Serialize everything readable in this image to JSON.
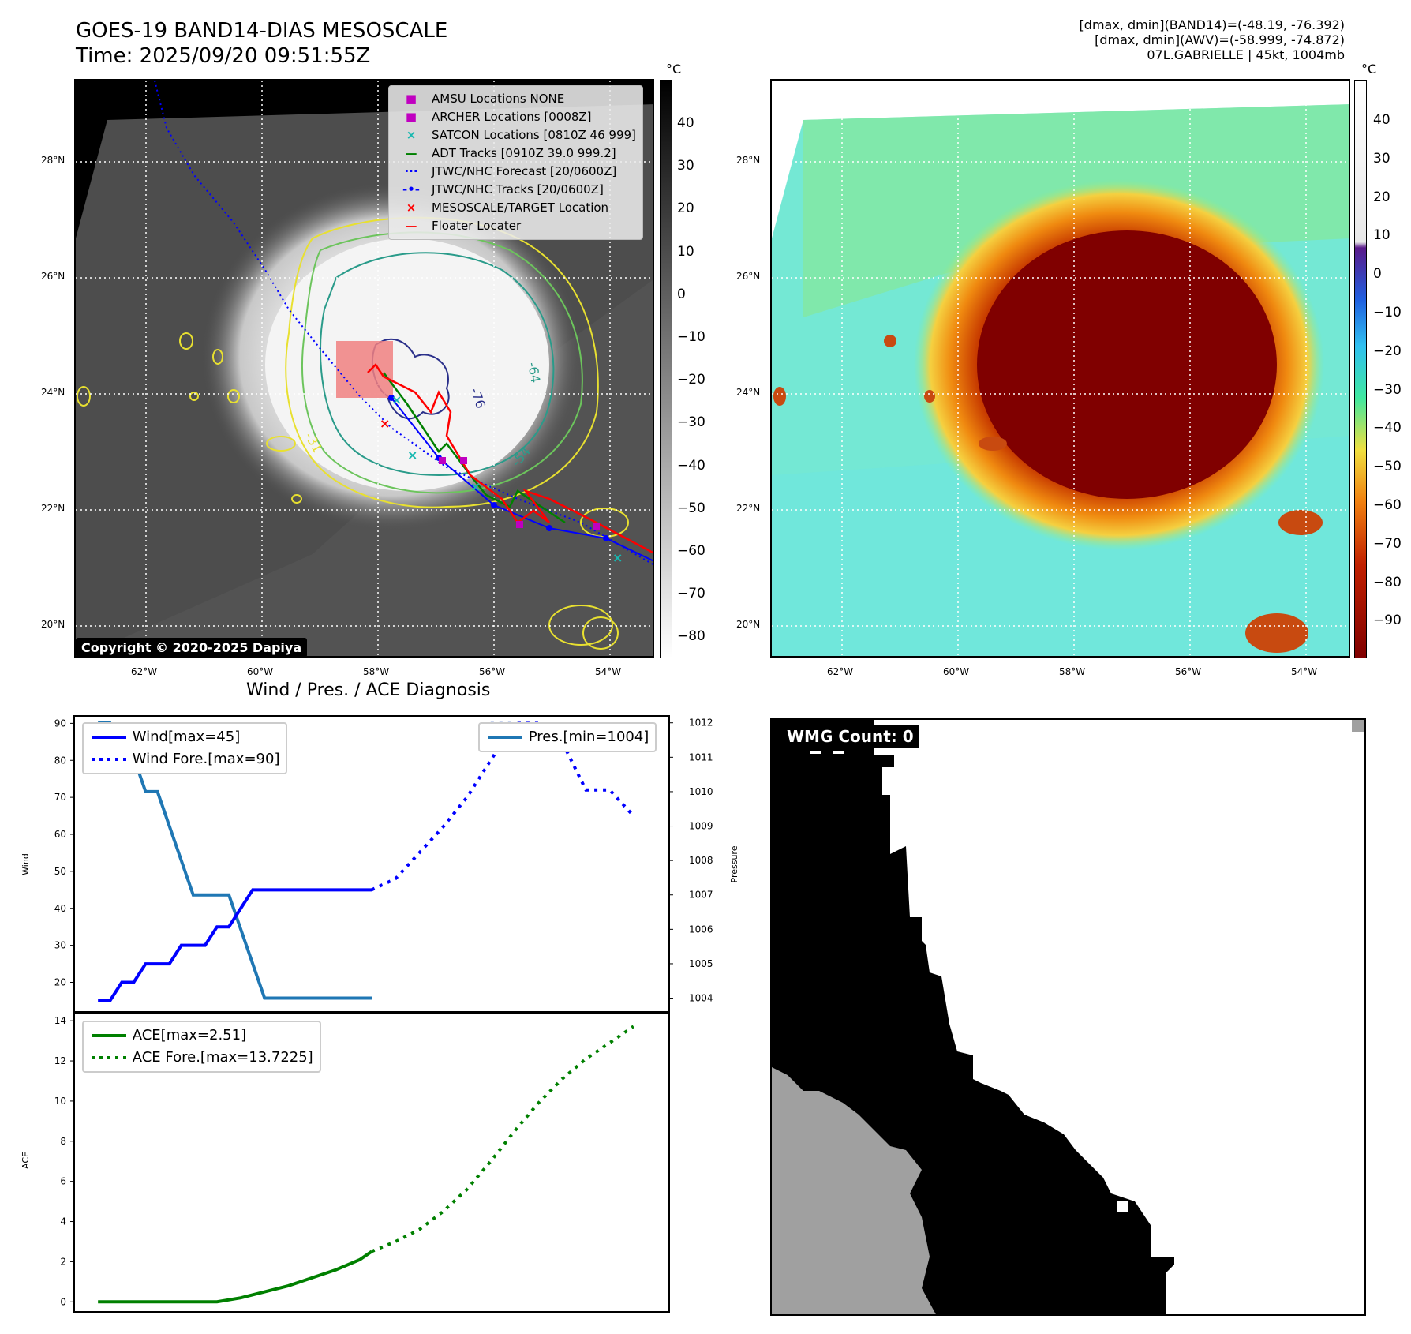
{
  "header": {
    "title_line1": "GOES-19 BAND14-DIAS MESOSCALE",
    "title_line2": "Time: 2025/09/20 09:51:55Z",
    "info_line1": "[dmax, dmin](BAND14)=(-48.19, -76.392)",
    "info_line2": "[dmax, dmin](AWV)=(-58.999, -74.872)",
    "info_line3": "07L.GABRIELLE | 45kt, 1004mb"
  },
  "map": {
    "lat_labels": [
      "28°N",
      "26°N",
      "24°N",
      "22°N",
      "20°N"
    ],
    "lon_labels": [
      "62°W",
      "60°W",
      "58°W",
      "56°W",
      "54°W"
    ],
    "contour_labels": [
      "-64",
      "-76",
      "-54",
      "-31"
    ],
    "copyright": "Copyright © 2020-2025 Dapiya",
    "legend": [
      {
        "symbol": "■",
        "color": "#c000c0",
        "label": "AMSU Locations NONE"
      },
      {
        "symbol": "■",
        "color": "#c000c0",
        "label": "ARCHER Locations [0008Z]"
      },
      {
        "symbol": "×",
        "color": "#17b8b0",
        "label": "SATCON Locations [0810Z 46 999]"
      },
      {
        "symbol": "—",
        "color": "#008000",
        "label": "ADT Tracks [0910Z 39.0 999.2]"
      },
      {
        "symbol": "···",
        "color": "#0000ff",
        "label": "JTWC/NHC Forecast [20/0600Z]"
      },
      {
        "symbol": "-•-",
        "color": "#0000ff",
        "label": "JTWC/NHC Tracks [20/0600Z]"
      },
      {
        "symbol": "×",
        "color": "#ff0000",
        "label": "MESOSCALE/TARGET Location"
      },
      {
        "symbol": "—",
        "color": "#ff0000",
        "label": "Floater Locater"
      }
    ]
  },
  "colorbar_left": {
    "unit": "°C",
    "ticks": [
      "40",
      "30",
      "20",
      "10",
      "0",
      "−10",
      "−20",
      "−30",
      "−40",
      "−50",
      "−60",
      "−70",
      "−80"
    ]
  },
  "colorbar_right": {
    "unit": "°C",
    "ticks": [
      "40",
      "30",
      "20",
      "10",
      "0",
      "−10",
      "−20",
      "−30",
      "−40",
      "−50",
      "−60",
      "−70",
      "−80",
      "−90"
    ]
  },
  "wmg": {
    "label": "WMG Count: 0"
  },
  "chart_data": [
    {
      "type": "line",
      "title": "Wind / Pres. / ACE Diagnosis",
      "ylabel": "Wind",
      "ylim": [
        12,
        92
      ],
      "yticks": [
        20,
        30,
        40,
        50,
        60,
        70,
        80,
        90
      ],
      "y2label": "Pressure",
      "y2lim": [
        1003.6,
        1012.2
      ],
      "y2ticks": [
        1004,
        1005,
        1006,
        1007,
        1008,
        1009,
        1010,
        1011,
        1012
      ],
      "series": [
        {
          "name": "Wind[max=45]",
          "color": "#0000ff",
          "style": "solid",
          "axis": "left",
          "x": [
            0,
            1,
            2,
            3,
            4,
            5,
            6,
            7,
            8,
            9,
            10,
            11,
            12,
            13,
            14,
            15,
            16,
            17,
            18,
            19,
            20,
            21,
            22,
            23
          ],
          "values": [
            15,
            15,
            20,
            20,
            25,
            25,
            25,
            30,
            30,
            30,
            35,
            35,
            40,
            45,
            45,
            45,
            45,
            45,
            45,
            45,
            45,
            45,
            45,
            45
          ]
        },
        {
          "name": "Wind Fore.[max=90]",
          "color": "#0000ff",
          "style": "dotted",
          "axis": "left",
          "x": [
            23,
            25,
            27,
            29,
            31,
            33,
            35,
            37,
            39,
            41,
            43,
            45
          ],
          "values": [
            45,
            48,
            55,
            62,
            70,
            80,
            90,
            90,
            85,
            72,
            72,
            65
          ]
        },
        {
          "name": "Pres.[min=1004]",
          "color": "#1f77b4",
          "style": "solid",
          "axis": "right",
          "x": [
            0,
            1,
            2,
            3,
            4,
            5,
            6,
            7,
            8,
            9,
            10,
            11,
            12,
            13,
            14,
            15,
            16,
            17,
            18,
            19,
            20,
            21,
            22,
            23
          ],
          "values": [
            1012,
            1012,
            1011,
            1011,
            1010,
            1010,
            1009,
            1008,
            1007,
            1007,
            1007,
            1007,
            1006,
            1005,
            1004,
            1004,
            1004,
            1004,
            1004,
            1004,
            1004,
            1004,
            1004,
            1004
          ]
        },
        {
          "name": "Pres. Fore.",
          "color": "#c8d4f0",
          "style": "dotted",
          "axis": "right",
          "x": [
            33,
            35,
            37,
            39
          ],
          "values": [
            1012,
            1012,
            1011.9,
            1011.8
          ]
        }
      ]
    },
    {
      "type": "line",
      "ylabel": "ACE",
      "ylim": [
        -0.5,
        14.4
      ],
      "yticks": [
        0,
        2,
        4,
        6,
        8,
        10,
        12,
        14
      ],
      "series": [
        {
          "name": "ACE[max=2.51]",
          "color": "#008000",
          "style": "solid",
          "x": [
            0,
            2,
            4,
            6,
            8,
            10,
            12,
            14,
            16,
            18,
            20,
            22,
            23
          ],
          "values": [
            0,
            0,
            0,
            0,
            0,
            0,
            0.2,
            0.5,
            0.8,
            1.2,
            1.6,
            2.1,
            2.51
          ]
        },
        {
          "name": "ACE Fore.[max=13.7225]",
          "color": "#008000",
          "style": "dotted",
          "x": [
            23,
            25,
            27,
            29,
            31,
            33,
            35,
            37,
            39,
            41,
            43,
            45
          ],
          "values": [
            2.51,
            3.0,
            3.6,
            4.5,
            5.6,
            7.0,
            8.5,
            9.9,
            11.1,
            12.1,
            12.9,
            13.72
          ]
        }
      ]
    }
  ]
}
